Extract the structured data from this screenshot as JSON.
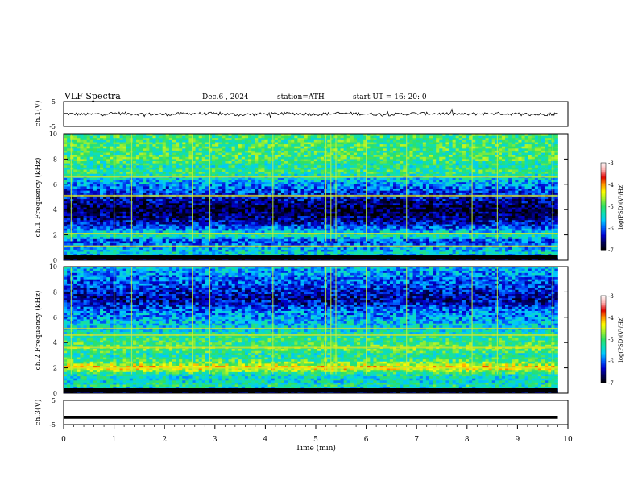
{
  "header": {
    "title": "VLF  Spectra",
    "date": "Dec.6  , 2024",
    "station": "station=ATH",
    "start_ut": "start  UT  =    16: 20: 0"
  },
  "colors": {
    "background": "#ffffff",
    "axis": "#000000",
    "trace": "#000000"
  },
  "colorbar": {
    "label": "log(PSD)(V²/Hz)",
    "ticks": [
      "-3",
      "-4",
      "-5",
      "-6",
      "-7"
    ],
    "colormap": [
      "#000000",
      "#000060",
      "#0000d0",
      "#0060ff",
      "#00c8ff",
      "#10e0b0",
      "#30e060",
      "#a0f030",
      "#ffff00",
      "#ff9000",
      "#e00000",
      "#ffb0b0",
      "#ffffff"
    ]
  },
  "chart_data": [
    {
      "type": "line",
      "name": "ch1-timeseries",
      "ylabel": "ch.1(V)",
      "y_ticks": [
        "5",
        "-5"
      ],
      "ylim": [
        -5,
        5
      ],
      "xlim": [
        0,
        10
      ],
      "x": [
        0,
        0.5,
        1,
        1.5,
        2,
        2.5,
        3,
        3.5,
        4,
        4.5,
        5,
        5.5,
        6,
        6.5,
        7,
        7.5,
        8,
        8.5,
        9,
        9.5,
        9.8
      ],
      "y": [
        0.1,
        -0.2,
        0.3,
        0.0,
        -0.2,
        0.2,
        0.1,
        -0.3,
        0.0,
        0.2,
        -0.1,
        0.3,
        0.0,
        -0.2,
        0.2,
        0.1,
        -0.1,
        0.2,
        0.0,
        -0.2,
        0.1
      ]
    },
    {
      "type": "heatmap",
      "name": "ch1-spectrogram",
      "ylabel": "ch.1\nFrequency (kHz)",
      "y_ticks": [
        "10",
        "8",
        "6",
        "4",
        "2",
        "0"
      ],
      "ylim": [
        0,
        10
      ],
      "xlim": [
        0,
        9.8
      ],
      "value_range": [
        -7,
        -3
      ],
      "freq_profile_khz": [
        0,
        0.5,
        1,
        1.5,
        2,
        2.5,
        3,
        3.5,
        4,
        4.5,
        5,
        5.5,
        6,
        6.5,
        7,
        7.5,
        8,
        8.5,
        9,
        9.5,
        10
      ],
      "freq_profile_log_psd": [
        -6.9,
        -5.4,
        -5.8,
        -6.1,
        -5.2,
        -6.0,
        -6.4,
        -6.6,
        -6.8,
        -6.6,
        -6.3,
        -6.1,
        -5.8,
        -5.5,
        -5.1,
        -5.3,
        -5.0,
        -5.1,
        -5.0,
        -5.1,
        -5.0
      ],
      "vertical_lines_min": [
        0.15,
        1.0,
        1.35,
        2.55,
        2.9,
        4.15,
        5.2,
        5.3,
        5.4,
        6.0,
        6.8,
        8.1,
        8.6,
        9.7
      ],
      "horizontal_lines_khz": [
        1.1,
        2.1,
        5.1,
        6.6
      ]
    },
    {
      "type": "heatmap",
      "name": "ch2-spectrogram",
      "ylabel": "ch.2\nFrequency (kHz)",
      "y_ticks": [
        "10",
        "8",
        "6",
        "4",
        "2",
        "0"
      ],
      "ylim": [
        0,
        10
      ],
      "xlim": [
        0,
        9.8
      ],
      "value_range": [
        -7,
        -3
      ],
      "freq_profile_khz": [
        0,
        0.5,
        1,
        1.5,
        2,
        2.5,
        3,
        3.5,
        4,
        4.5,
        5,
        5.5,
        6,
        6.5,
        7,
        7.5,
        8,
        8.5,
        9,
        9.5,
        10
      ],
      "freq_profile_log_psd": [
        -6.9,
        -5.2,
        -5.5,
        -5.3,
        -4.2,
        -5.0,
        -5.3,
        -4.9,
        -5.1,
        -5.2,
        -5.5,
        -5.6,
        -5.8,
        -5.9,
        -6.3,
        -6.5,
        -6.3,
        -6.1,
        -6.0,
        -5.8,
        -5.6
      ],
      "vertical_lines_min": [
        0.15,
        1.0,
        1.35,
        2.55,
        2.9,
        4.15,
        5.2,
        5.3,
        5.4,
        6.0,
        6.8,
        8.1,
        8.6,
        9.7
      ],
      "horizontal_lines_khz": [
        2.0,
        3.6,
        4.6,
        5.1
      ]
    },
    {
      "type": "line",
      "name": "ch3-timeseries",
      "ylabel": "ch.3(V)",
      "y_ticks": [
        "5",
        "-5"
      ],
      "ylim": [
        -5,
        5
      ],
      "xlim": [
        0,
        10
      ],
      "xlabel": "Time  (min)",
      "x_ticks": [
        "0",
        "1",
        "2",
        "3",
        "4",
        "5",
        "6",
        "7",
        "8",
        "9",
        "10"
      ],
      "x": [
        0,
        9.8
      ],
      "y": [
        -2.0,
        -2.0
      ]
    }
  ]
}
